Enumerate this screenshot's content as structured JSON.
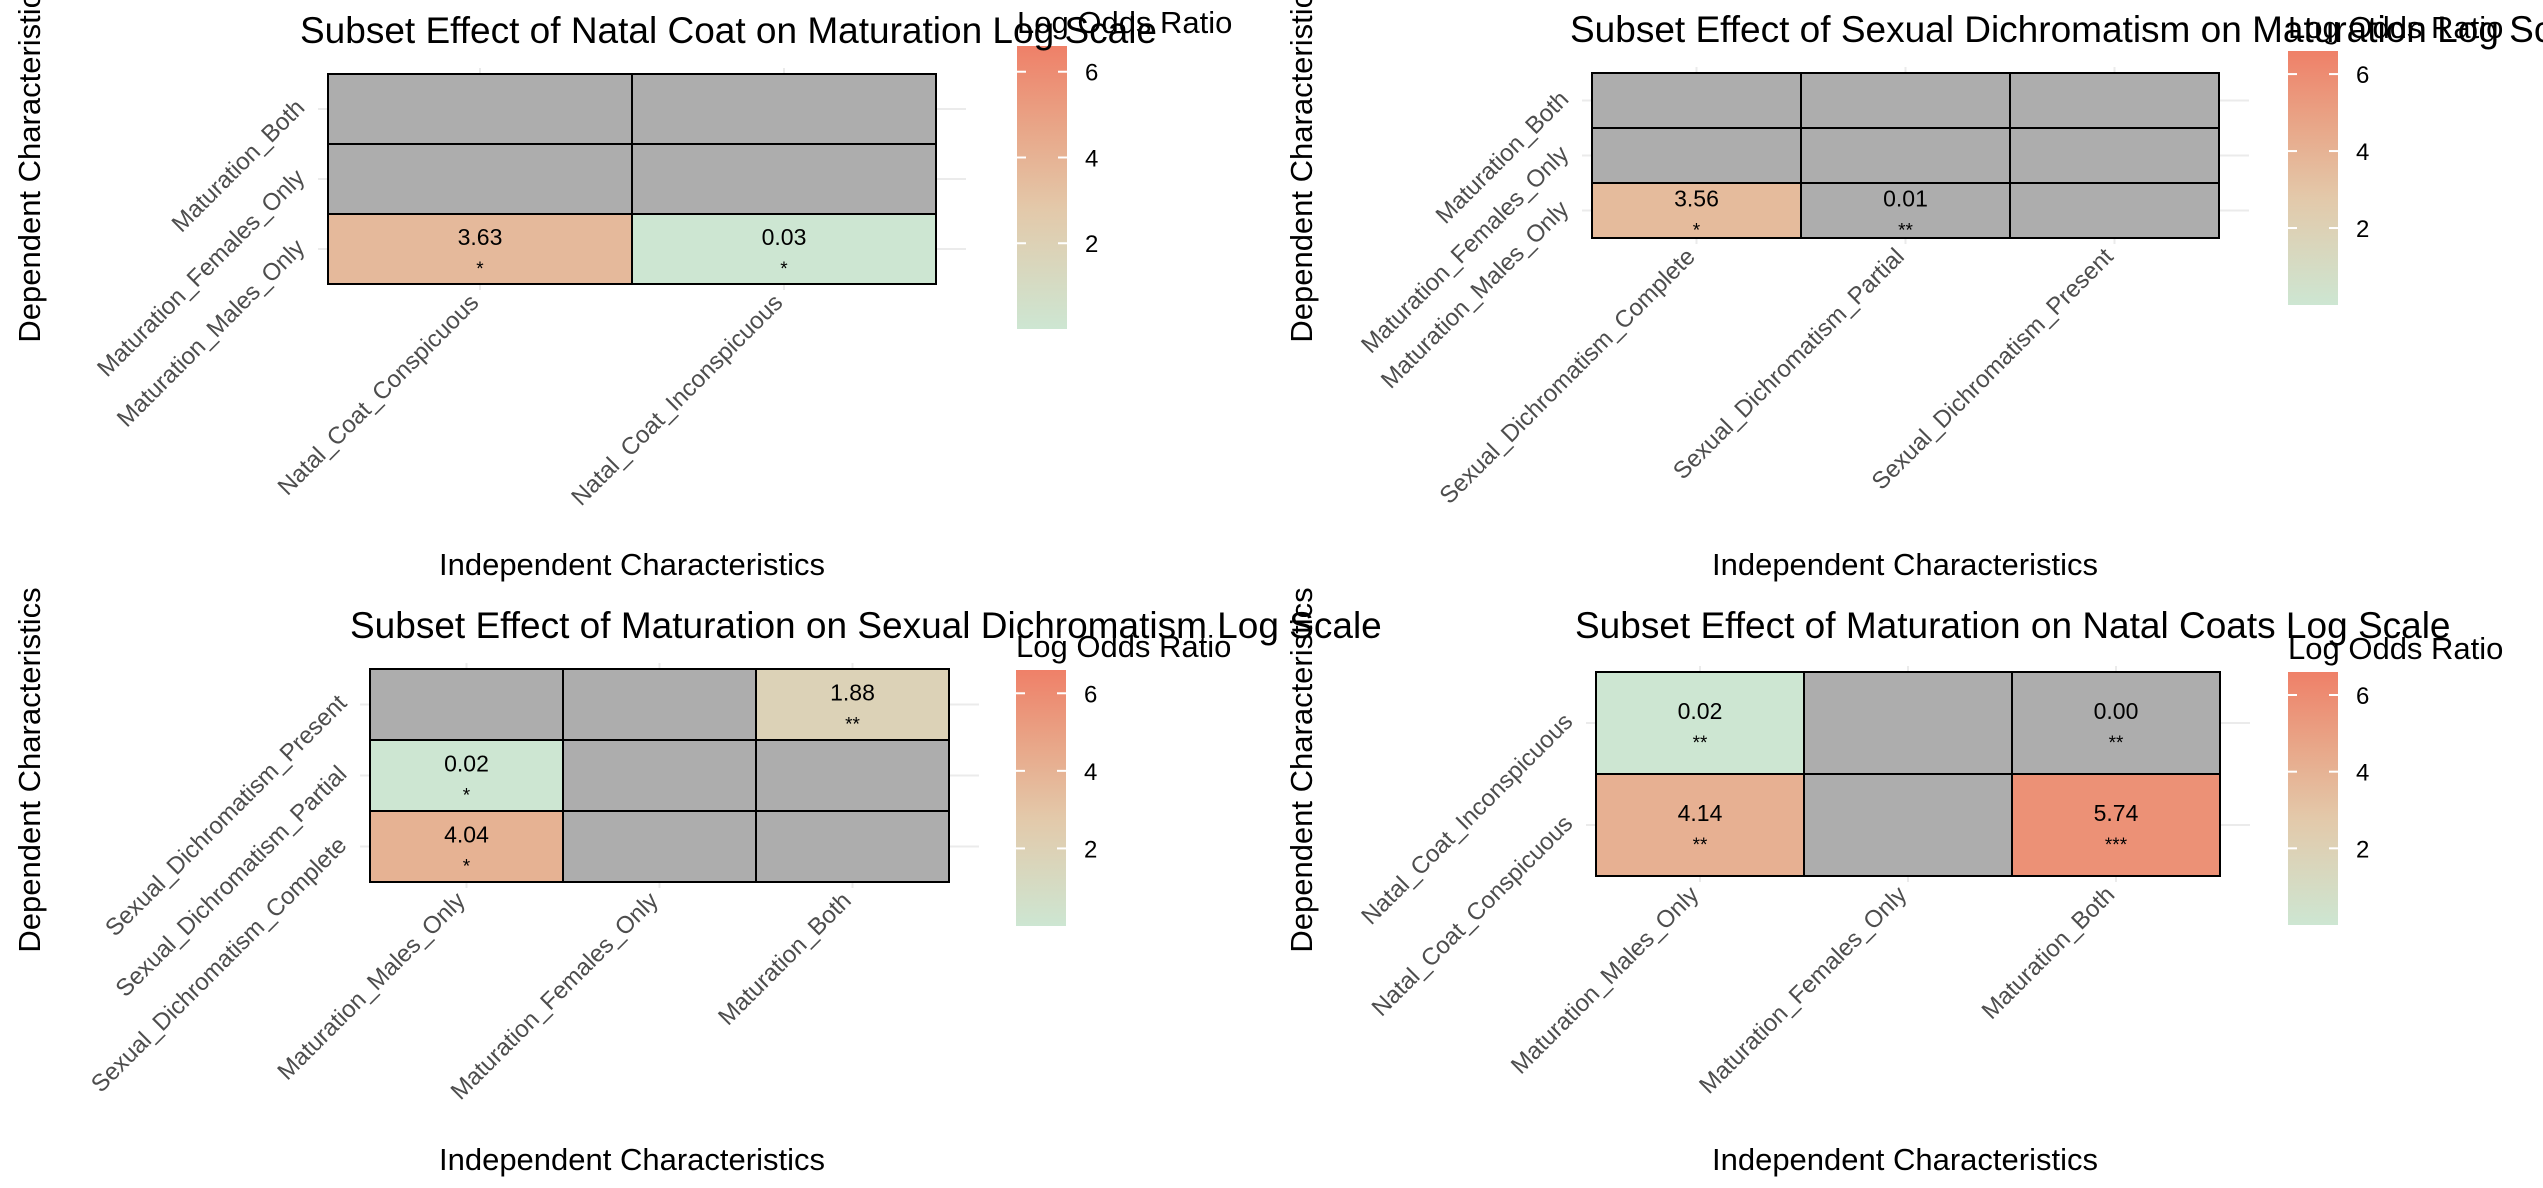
{
  "colors": {
    "missing": "#adadad",
    "grid": "#ebebeb",
    "gradient": [
      "#cde6d2",
      "#e3c9aa",
      "#e8a789",
      "#ef8068"
    ],
    "gradient_stops": [
      0,
      0.42,
      0.7,
      1
    ]
  },
  "legend_title": "Log Odds Ratio",
  "legend_ticks": [
    2,
    4,
    6
  ],
  "legend_range": [
    0,
    6.6
  ],
  "chart_data": [
    {
      "type": "heatmap",
      "title": "Subset Effect of Natal Coat on Maturation Log Scale",
      "xlabel": "Independent Characteristics",
      "ylabel": "Dependent Characteristics",
      "x": [
        "Natal_Coat_Conspicuous",
        "Natal_Coat_Inconspicuous"
      ],
      "y": [
        "Maturation_Both",
        "Maturation_Females_Only",
        "Maturation_Males_Only"
      ],
      "cells": [
        {
          "x": "Natal_Coat_Conspicuous",
          "y": "Maturation_Males_Only",
          "value": 3.63,
          "label": "3.63",
          "sig": "*"
        },
        {
          "x": "Natal_Coat_Inconspicuous",
          "y": "Maturation_Males_Only",
          "value": 0.03,
          "label": "0.03",
          "sig": "*"
        }
      ]
    },
    {
      "type": "heatmap",
      "title": "Subset Effect of Sexual Dichromatism on Maturation Log Scale",
      "xlabel": "Independent Characteristics",
      "ylabel": "Dependent Characteristics",
      "x": [
        "Sexual_Dichromatism_Complete",
        "Sexual_Dichromatism_Partial",
        "Sexual_Dichromatism_Present"
      ],
      "y": [
        "Maturation_Both",
        "Maturation_Females_Only",
        "Maturation_Males_Only"
      ],
      "cells": [
        {
          "x": "Sexual_Dichromatism_Complete",
          "y": "Maturation_Males_Only",
          "value": 3.56,
          "label": "3.56",
          "sig": "*"
        },
        {
          "x": "Sexual_Dichromatism_Partial",
          "y": "Maturation_Males_Only",
          "value": null,
          "label": "0.01",
          "sig": "**"
        }
      ]
    },
    {
      "type": "heatmap",
      "title": "Subset Effect of Maturation on Sexual Dichromatism Log Scale",
      "xlabel": "Independent Characteristics",
      "ylabel": "Dependent Characteristics",
      "x": [
        "Maturation_Males_Only",
        "Maturation_Females_Only",
        "Maturation_Both"
      ],
      "y": [
        "Sexual_Dichromatism_Present",
        "Sexual_Dichromatism_Partial",
        "Sexual_Dichromatism_Complete"
      ],
      "cells": [
        {
          "x": "Maturation_Both",
          "y": "Sexual_Dichromatism_Present",
          "value": 1.88,
          "label": "1.88",
          "sig": "**"
        },
        {
          "x": "Maturation_Males_Only",
          "y": "Sexual_Dichromatism_Partial",
          "value": 0.02,
          "label": "0.02",
          "sig": "*"
        },
        {
          "x": "Maturation_Males_Only",
          "y": "Sexual_Dichromatism_Complete",
          "value": 4.04,
          "label": "4.04",
          "sig": "*"
        }
      ]
    },
    {
      "type": "heatmap",
      "title": "Subset Effect of Maturation on Natal Coats Log Scale",
      "xlabel": "Independent Characteristics",
      "ylabel": "Dependent Characteristics",
      "x": [
        "Maturation_Males_Only",
        "Maturation_Females_Only",
        "Maturation_Both"
      ],
      "y": [
        "Natal_Coat_Inconspicuous",
        "Natal_Coat_Conspicuous"
      ],
      "cells": [
        {
          "x": "Maturation_Males_Only",
          "y": "Natal_Coat_Inconspicuous",
          "value": 0.02,
          "label": "0.02",
          "sig": "**"
        },
        {
          "x": "Maturation_Both",
          "y": "Natal_Coat_Inconspicuous",
          "value": null,
          "label": "0.00",
          "sig": "**"
        },
        {
          "x": "Maturation_Males_Only",
          "y": "Natal_Coat_Conspicuous",
          "value": 4.14,
          "label": "4.14",
          "sig": "**"
        },
        {
          "x": "Maturation_Both",
          "y": "Natal_Coat_Conspicuous",
          "value": 5.74,
          "label": "5.74",
          "sig": "***"
        }
      ]
    }
  ]
}
